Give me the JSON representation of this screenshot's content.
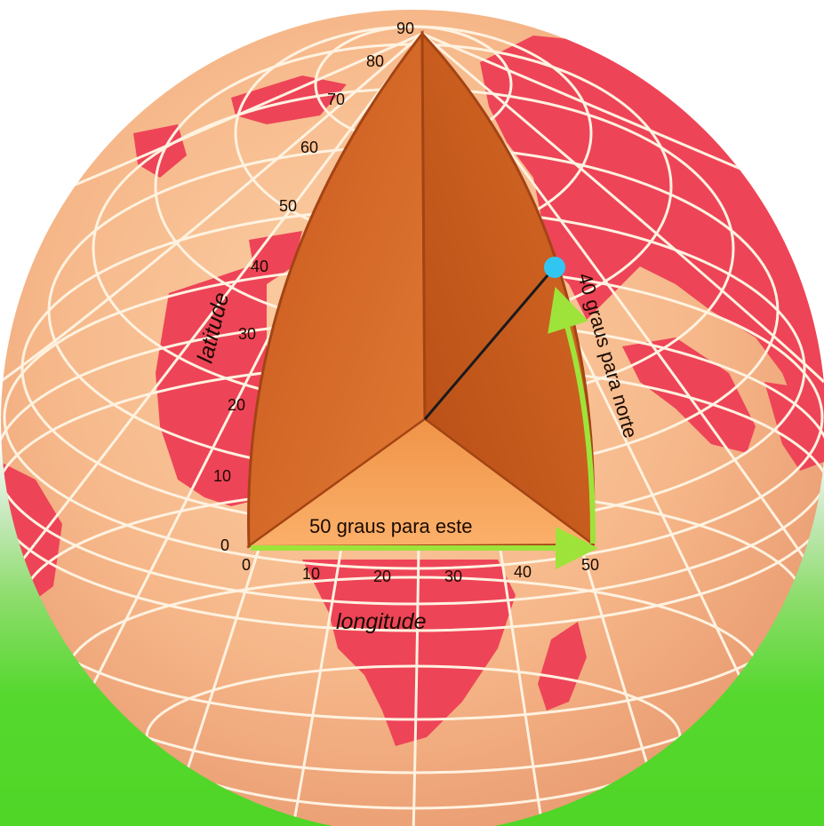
{
  "latitude": {
    "title": "latitude",
    "ticks": [
      "0",
      "10",
      "20",
      "30",
      "40",
      "50",
      "60",
      "70",
      "80",
      "90"
    ]
  },
  "longitude": {
    "title": "longitude",
    "ticks": [
      "0",
      "10",
      "20",
      "30",
      "40",
      "50"
    ]
  },
  "arrows": {
    "east_label": "50 graus para este",
    "north_label": "40 graus para norte"
  },
  "point": {
    "latitude": 40,
    "longitude": 50
  },
  "colors": {
    "ocean": "#f6b88a",
    "land": "#ee4458",
    "grid": "#fff2e0",
    "wedge": "#e8772c",
    "arrow": "#9ee33a",
    "point": "#31c6f2",
    "background_bottom": "#4fd626"
  }
}
